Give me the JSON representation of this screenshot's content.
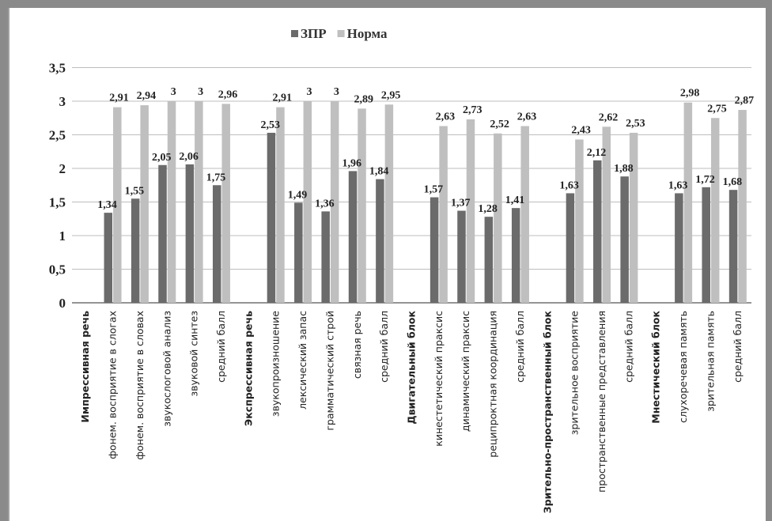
{
  "chart_data": {
    "type": "bar",
    "title": "",
    "xlabel": "",
    "ylabel": "",
    "ylim": [
      0,
      3.5
    ],
    "yticks": [
      "0",
      "0,5",
      "1",
      "1,5",
      "2",
      "2,5",
      "3",
      "3,5"
    ],
    "grid": true,
    "legend_position": "top-center",
    "categories": [
      "Импрессивная речь",
      "фонем. восприятие в слогах",
      "фонем. восприятие в словах",
      "звукослоговой анализ",
      "звуковой синтез",
      "средний балл",
      "Экспрессивная речь",
      "звукопроизношение",
      "лексический запас",
      "грамматический строй",
      "связная речь",
      "средний балл",
      "Двигательный блок",
      "кинестетический праксис",
      "динамический праксис",
      "реципроктная координация",
      "средний балл",
      "Зрительно-пространственный блок",
      "зрительное восприятие",
      "пространственные представления",
      "средний балл",
      "Мнестический блок",
      "слухоречевая память",
      "зрительная память",
      "средний балл"
    ],
    "bold_categories": [
      0,
      6,
      12,
      17,
      21
    ],
    "series": [
      {
        "name": "ЗПР",
        "color": "#6b6b6b",
        "values": [
          null,
          1.34,
          1.55,
          2.05,
          2.06,
          1.75,
          null,
          2.53,
          1.49,
          1.36,
          1.96,
          1.84,
          null,
          1.57,
          1.37,
          1.28,
          1.41,
          null,
          1.63,
          2.12,
          1.88,
          null,
          1.63,
          1.72,
          1.68
        ],
        "labels": [
          "",
          "1,34",
          "1,55",
          "2,05",
          "2,06",
          "1,75",
          "",
          "2,53",
          "1,49",
          "1,36",
          "1,96",
          "1,84",
          "",
          "1,57",
          "1,37",
          "1,28",
          "1,41",
          "",
          "1,63",
          "2,12",
          "1,88",
          "",
          "1,63",
          "1,72",
          "1,68"
        ]
      },
      {
        "name": "Норма",
        "color": "#bfbfbf",
        "values": [
          null,
          2.91,
          2.94,
          3,
          3,
          2.96,
          null,
          2.91,
          3,
          3,
          2.89,
          2.95,
          null,
          2.63,
          2.73,
          2.52,
          2.63,
          null,
          2.43,
          2.62,
          2.53,
          null,
          2.98,
          2.75,
          2.87
        ],
        "labels": [
          "",
          "2,91",
          "2,94",
          "3",
          "3",
          "2,96",
          "",
          "2,91",
          "3",
          "3",
          "2,89",
          "2,95",
          "",
          "2,63",
          "2,73",
          "2,52",
          "2,63",
          "",
          "2,43",
          "2,62",
          "2,53",
          "",
          "2,98",
          "2,75",
          "2,87"
        ]
      }
    ]
  }
}
